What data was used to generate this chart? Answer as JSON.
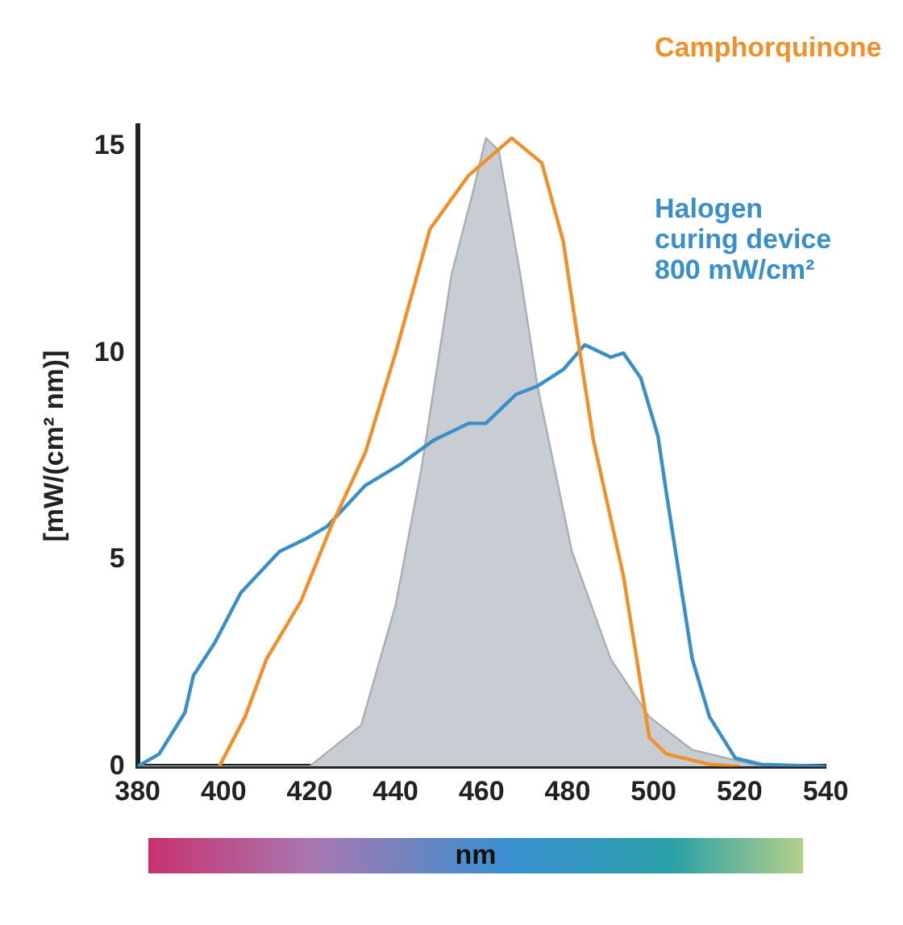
{
  "chart_data": {
    "type": "line",
    "xlabel": "nm",
    "ylabel": "[mW/(cm² nm)]",
    "xlim": [
      380,
      540
    ],
    "xticks": [
      380,
      400,
      420,
      440,
      460,
      480,
      500,
      520,
      540
    ],
    "ylim": [
      0,
      15.5
    ],
    "yticks": [
      0,
      5,
      10,
      15
    ],
    "grid": false,
    "legend": false,
    "marker": "none",
    "series": [
      {
        "type": "area",
        "color": "#c8cdd3",
        "x": [
          380,
          420,
          432,
          440,
          446,
          453,
          458,
          461,
          464,
          469,
          473,
          481,
          490,
          499,
          509,
          517,
          525,
          540
        ],
        "values": [
          0,
          0,
          1.0,
          3.9,
          7.2,
          11.9,
          13.9,
          15.2,
          14.9,
          11.9,
          9.2,
          5.2,
          2.6,
          1.2,
          0.4,
          0.2,
          0,
          0
        ]
      },
      {
        "name": "Camphorquinone",
        "color": "#f0902a",
        "x": [
          399,
          405,
          410,
          418,
          425,
          433,
          440,
          448,
          457,
          467,
          474,
          479,
          482,
          486,
          493,
          499,
          503,
          513,
          520
        ],
        "values": [
          0,
          1.2,
          2.6,
          4.0,
          5.8,
          7.6,
          10.0,
          13.0,
          14.3,
          15.2,
          14.6,
          12.7,
          10.6,
          7.9,
          4.6,
          0.7,
          0.3,
          0.05,
          0
        ]
      },
      {
        "name": "Halogen curing device 800 mW/cm²",
        "color": "#3a8fc8",
        "x": [
          380,
          385,
          391,
          393,
          398,
          404,
          413,
          419,
          424,
          433,
          441,
          449,
          457,
          461,
          468,
          473,
          479,
          484,
          486,
          490,
          493,
          497,
          501,
          503,
          506,
          509,
          513,
          519,
          525,
          540
        ],
        "values": [
          0,
          0.3,
          1.3,
          2.2,
          3.0,
          4.2,
          5.2,
          5.5,
          5.8,
          6.8,
          7.3,
          7.9,
          8.3,
          8.3,
          9.0,
          9.2,
          9.6,
          10.2,
          10.1,
          9.9,
          10.0,
          9.4,
          8.0,
          6.6,
          4.6,
          2.6,
          1.2,
          0.2,
          0.05,
          0
        ]
      }
    ]
  }
}
